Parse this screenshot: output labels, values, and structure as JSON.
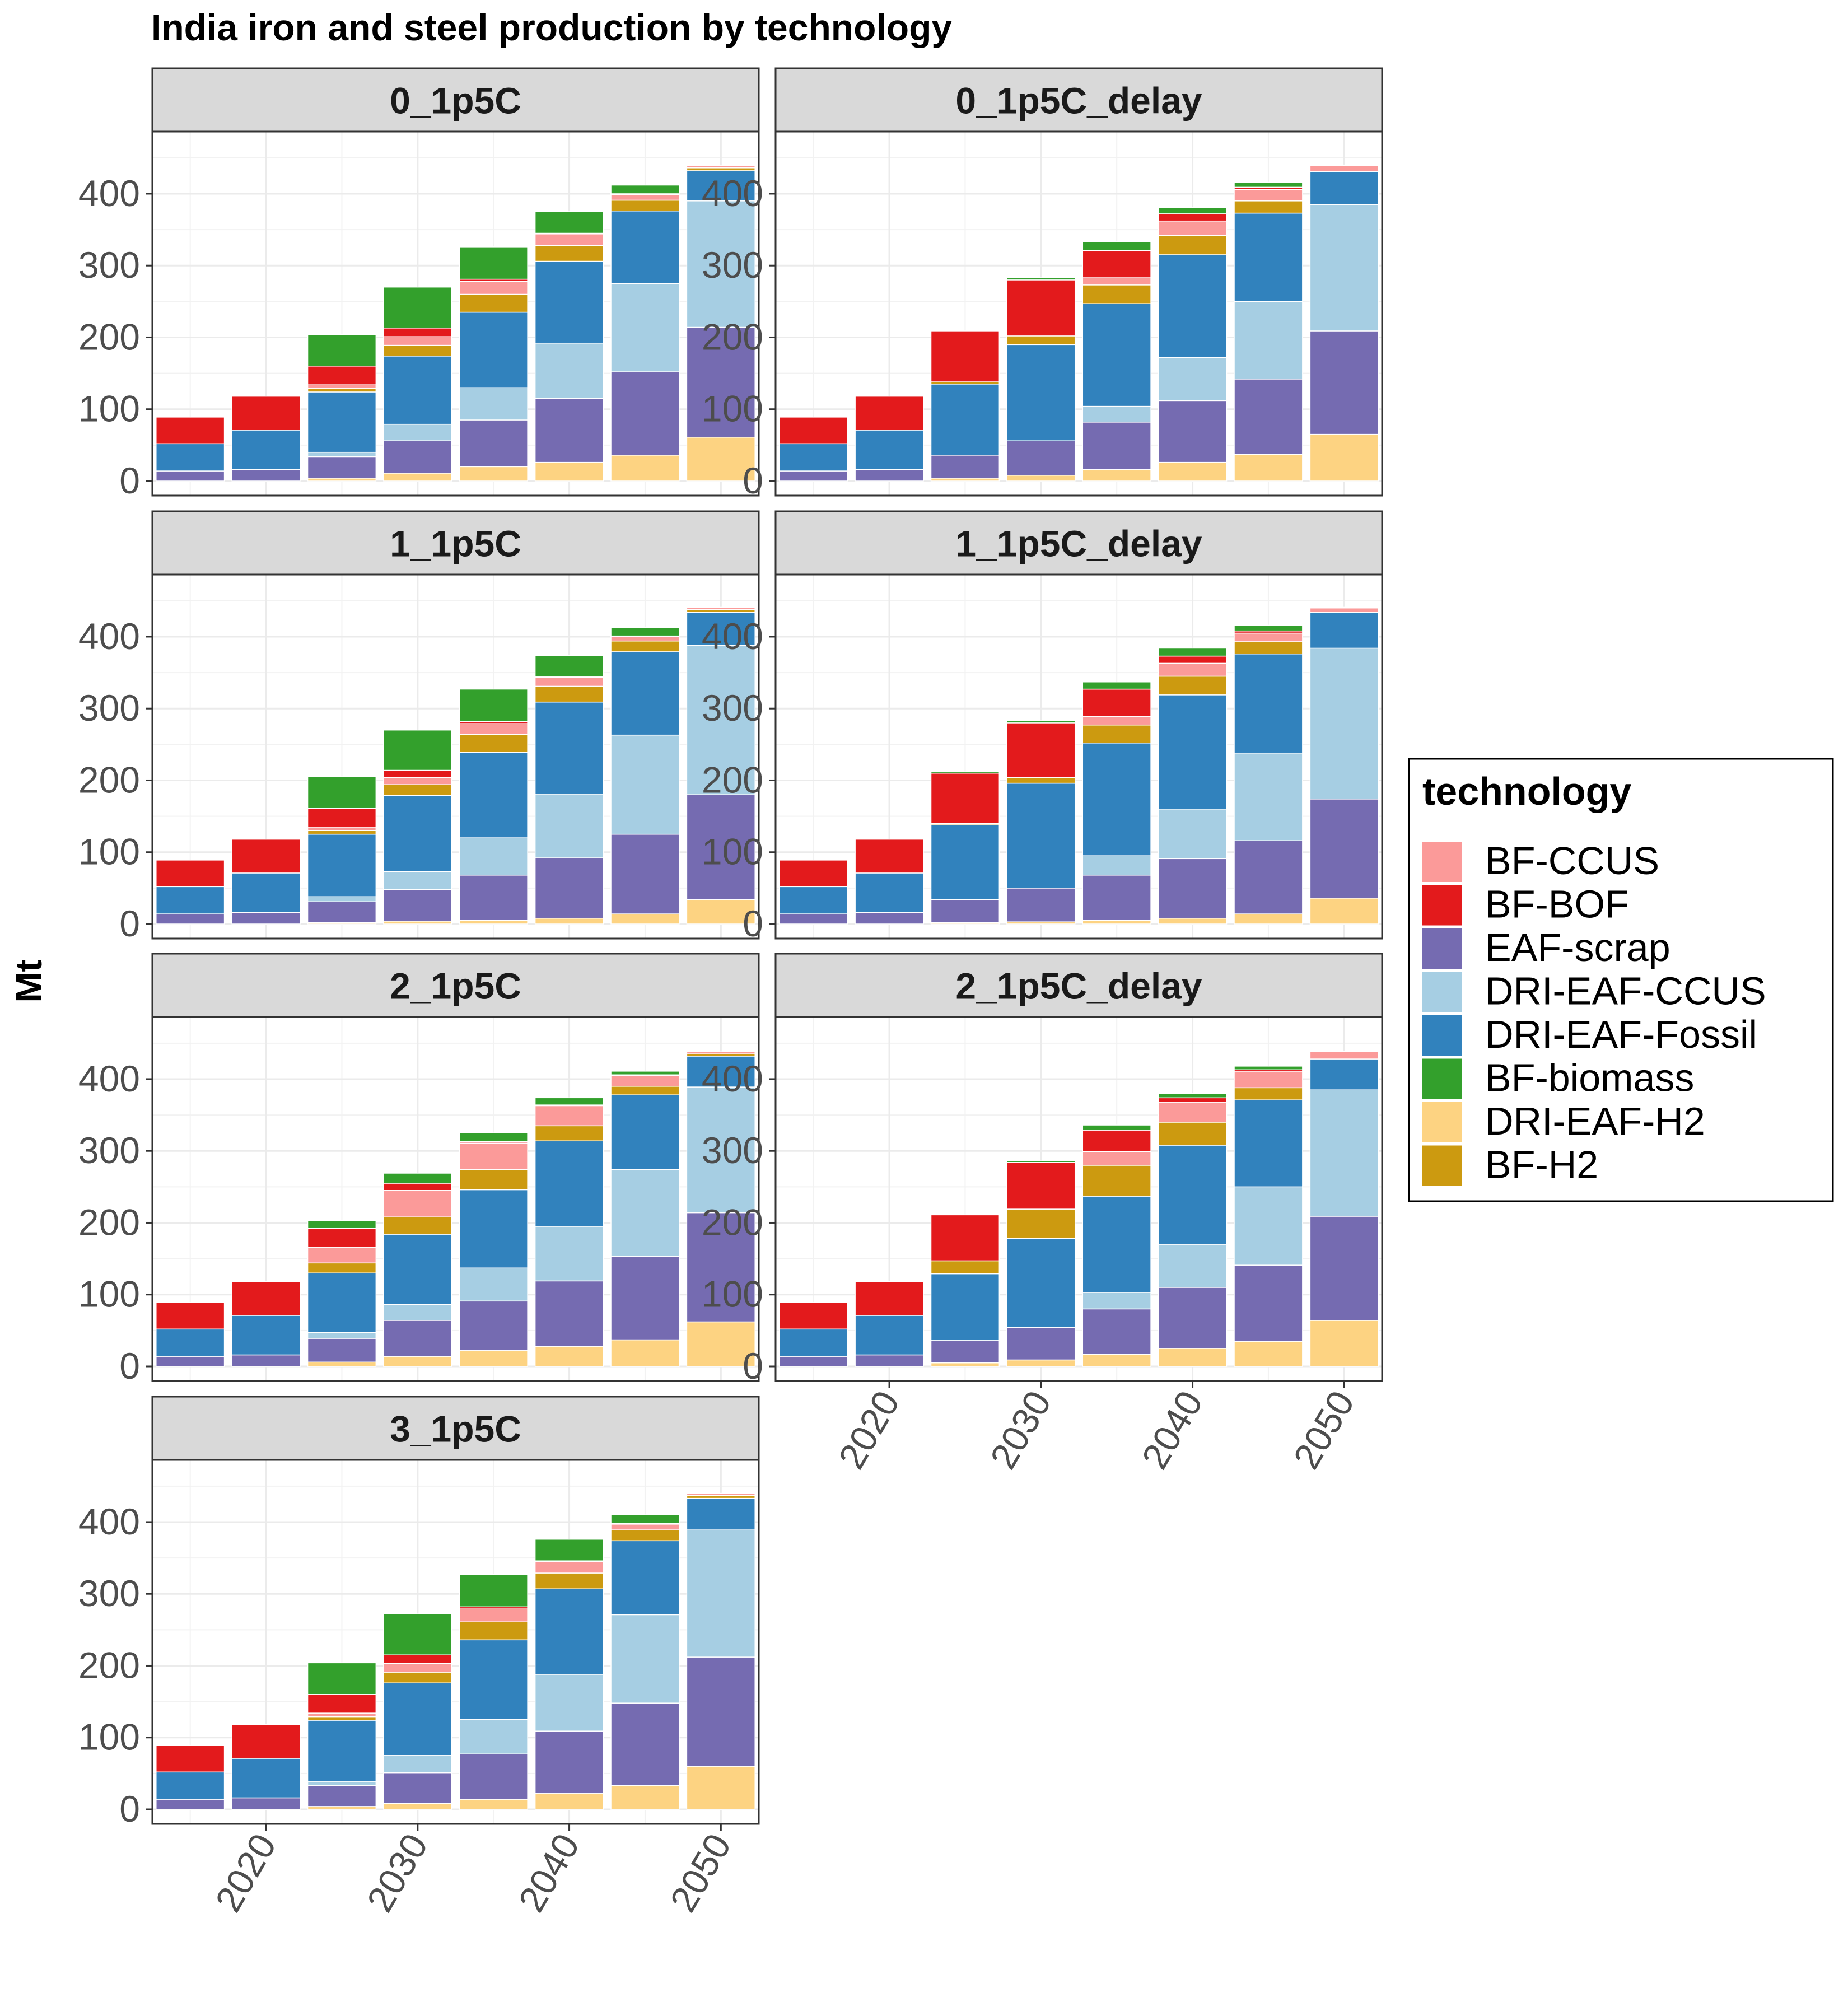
{
  "chart_data": {
    "type": "bar",
    "stacked": true,
    "title": "India iron and steel production by technology",
    "ylabel": "Mt",
    "xlabel": "",
    "x_tick_labels": [
      "2020",
      "2030",
      "2040",
      "2050"
    ],
    "y_tick_labels": [
      "0",
      "100",
      "200",
      "300",
      "400"
    ],
    "ylim": [
      0,
      460
    ],
    "categories": [
      2015,
      2020,
      2025,
      2030,
      2035,
      2040,
      2045,
      2050
    ],
    "grid": true,
    "legend_position": "right",
    "legend": {
      "title": "technology",
      "entries": [
        {
          "name": "BF-CCUS",
          "color": "#FB9A99"
        },
        {
          "name": "BF-BOF",
          "color": "#E31A1C"
        },
        {
          "name": "EAF-scrap",
          "color": "#756BB1"
        },
        {
          "name": "DRI-EAF-CCUS",
          "color": "#A6CEE3"
        },
        {
          "name": "DRI-EAF-Fossil",
          "color": "#3182BD"
        },
        {
          "name": "BF-biomass",
          "color": "#33A02C"
        },
        {
          "name": "DRI-EAF-H2",
          "color": "#FDD382"
        },
        {
          "name": "BF-H2",
          "color": "#CC9A10"
        }
      ]
    },
    "stack_order_bottom_to_top": [
      "DRI-EAF-H2",
      "EAF-scrap",
      "DRI-EAF-CCUS",
      "DRI-EAF-Fossil",
      "BF-H2",
      "BF-CCUS",
      "BF-BOF",
      "BF-biomass"
    ],
    "panels": [
      {
        "name": "0_1p5C",
        "series": [
          {
            "name": "DRI-EAF-H2",
            "values": [
              0,
              0,
              4,
              11,
              20,
              26,
              36,
              61
            ]
          },
          {
            "name": "EAF-scrap",
            "values": [
              14,
              16,
              30,
              45,
              65,
              89,
              116,
              153
            ]
          },
          {
            "name": "DRI-EAF-CCUS",
            "values": [
              0,
              0,
              6,
              23,
              45,
              77,
              123,
              176
            ]
          },
          {
            "name": "DRI-EAF-Fossil",
            "values": [
              38,
              55,
              84,
              95,
              105,
              114,
              101,
              42
            ]
          },
          {
            "name": "BF-H2",
            "values": [
              0,
              0,
              5,
              15,
              25,
              22,
              15,
              4
            ]
          },
          {
            "name": "BF-CCUS",
            "values": [
              0,
              0,
              5,
              12,
              18,
              16,
              8,
              3
            ]
          },
          {
            "name": "BF-BOF",
            "values": [
              37,
              47,
              26,
              12,
              3,
              1,
              1,
              0
            ]
          },
          {
            "name": "BF-biomass",
            "values": [
              0,
              0,
              44,
              57,
              45,
              30,
              12,
              0
            ]
          }
        ]
      },
      {
        "name": "0_1p5C_delay",
        "series": [
          {
            "name": "DRI-EAF-H2",
            "values": [
              0,
              0,
              4,
              8,
              16,
              26,
              37,
              65
            ]
          },
          {
            "name": "EAF-scrap",
            "values": [
              14,
              16,
              32,
              48,
              66,
              86,
              105,
              144
            ]
          },
          {
            "name": "DRI-EAF-CCUS",
            "values": [
              0,
              0,
              0,
              0,
              22,
              60,
              108,
              176
            ]
          },
          {
            "name": "DRI-EAF-Fossil",
            "values": [
              38,
              55,
              99,
              134,
              143,
              143,
              123,
              46
            ]
          },
          {
            "name": "BF-H2",
            "values": [
              0,
              0,
              3,
              12,
              26,
              27,
              17,
              0
            ]
          },
          {
            "name": "BF-CCUS",
            "values": [
              0,
              0,
              0,
              0,
              10,
              20,
              16,
              8
            ]
          },
          {
            "name": "BF-BOF",
            "values": [
              37,
              47,
              71,
              78,
              38,
              10,
              3,
              1
            ]
          },
          {
            "name": "BF-biomass",
            "values": [
              0,
              0,
              0,
              3,
              12,
              9,
              7,
              0
            ]
          }
        ]
      },
      {
        "name": "1_1p5C",
        "series": [
          {
            "name": "DRI-EAF-H2",
            "values": [
              0,
              0,
              2,
              4,
              5,
              8,
              14,
              34
            ]
          },
          {
            "name": "EAF-scrap",
            "values": [
              14,
              16,
              29,
              44,
              63,
              84,
              111,
              146
            ]
          },
          {
            "name": "DRI-EAF-CCUS",
            "values": [
              0,
              0,
              7,
              25,
              52,
              89,
              138,
              208
            ]
          },
          {
            "name": "DRI-EAF-Fossil",
            "values": [
              38,
              55,
              87,
              106,
              119,
              128,
              116,
              46
            ]
          },
          {
            "name": "BF-H2",
            "values": [
              0,
              0,
              5,
              15,
              25,
              22,
              15,
              4
            ]
          },
          {
            "name": "BF-CCUS",
            "values": [
              0,
              0,
              5,
              10,
              15,
              12,
              6,
              3
            ]
          },
          {
            "name": "BF-BOF",
            "values": [
              37,
              47,
              26,
              10,
              3,
              1,
              1,
              0
            ]
          },
          {
            "name": "BF-biomass",
            "values": [
              0,
              0,
              44,
              56,
              45,
              30,
              12,
              0
            ]
          }
        ]
      },
      {
        "name": "1_1p5C_delay",
        "series": [
          {
            "name": "DRI-EAF-H2",
            "values": [
              0,
              0,
              2,
              3,
              5,
              8,
              14,
              36
            ]
          },
          {
            "name": "EAF-scrap",
            "values": [
              14,
              16,
              32,
              47,
              63,
              83,
              102,
              138
            ]
          },
          {
            "name": "DRI-EAF-CCUS",
            "values": [
              0,
              0,
              0,
              0,
              27,
              69,
              122,
              210
            ]
          },
          {
            "name": "DRI-EAF-Fossil",
            "values": [
              38,
              55,
              104,
              146,
              157,
              159,
              138,
              50
            ]
          },
          {
            "name": "BF-H2",
            "values": [
              0,
              0,
              2,
              8,
              25,
              26,
              17,
              0
            ]
          },
          {
            "name": "BF-CCUS",
            "values": [
              0,
              0,
              0,
              0,
              12,
              18,
              12,
              6
            ]
          },
          {
            "name": "BF-BOF",
            "values": [
              37,
              47,
              70,
              76,
              38,
              10,
              3,
              1
            ]
          },
          {
            "name": "BF-biomass",
            "values": [
              0,
              0,
              2,
              3,
              10,
              11,
              8,
              0
            ]
          }
        ]
      },
      {
        "name": "2_1p5C",
        "series": [
          {
            "name": "DRI-EAF-H2",
            "values": [
              0,
              0,
              6,
              14,
              22,
              28,
              37,
              62
            ]
          },
          {
            "name": "EAF-scrap",
            "values": [
              14,
              16,
              33,
              50,
              69,
              91,
              116,
              152
            ]
          },
          {
            "name": "DRI-EAF-CCUS",
            "values": [
              0,
              0,
              8,
              22,
              46,
              76,
              121,
              175
            ]
          },
          {
            "name": "DRI-EAF-Fossil",
            "values": [
              38,
              55,
              83,
              98,
              109,
              119,
              104,
              43
            ]
          },
          {
            "name": "BF-H2",
            "values": [
              0,
              0,
              14,
              24,
              28,
              21,
              12,
              3
            ]
          },
          {
            "name": "BF-CCUS",
            "values": [
              0,
              0,
              22,
              37,
              37,
              28,
              15,
              3
            ]
          },
          {
            "name": "BF-BOF",
            "values": [
              37,
              47,
              26,
              10,
              2,
              1,
              1,
              0
            ]
          },
          {
            "name": "BF-biomass",
            "values": [
              0,
              0,
              11,
              14,
              12,
              10,
              5,
              0
            ]
          }
        ]
      },
      {
        "name": "2_1p5C_delay",
        "series": [
          {
            "name": "DRI-EAF-H2",
            "values": [
              0,
              0,
              5,
              9,
              17,
              25,
              35,
              64
            ]
          },
          {
            "name": "EAF-scrap",
            "values": [
              14,
              16,
              31,
              45,
              63,
              85,
              106,
              145
            ]
          },
          {
            "name": "DRI-EAF-CCUS",
            "values": [
              0,
              0,
              0,
              0,
              23,
              60,
              109,
              176
            ]
          },
          {
            "name": "DRI-EAF-Fossil",
            "values": [
              38,
              55,
              93,
              124,
              134,
              138,
              121,
              43
            ]
          },
          {
            "name": "BF-H2",
            "values": [
              0,
              0,
              18,
              41,
              43,
              32,
              17,
              0
            ]
          },
          {
            "name": "BF-CCUS",
            "values": [
              0,
              0,
              0,
              0,
              19,
              28,
              23,
              10
            ]
          },
          {
            "name": "BF-BOF",
            "values": [
              37,
              47,
              64,
              65,
              30,
              6,
              2,
              1
            ]
          },
          {
            "name": "BF-biomass",
            "values": [
              0,
              0,
              0,
              2,
              7,
              6,
              5,
              0
            ]
          }
        ]
      },
      {
        "name": "3_1p5C",
        "series": [
          {
            "name": "DRI-EAF-H2",
            "values": [
              0,
              0,
              4,
              8,
              14,
              22,
              33,
              60
            ]
          },
          {
            "name": "EAF-scrap",
            "values": [
              14,
              16,
              29,
              43,
              63,
              87,
              115,
              152
            ]
          },
          {
            "name": "DRI-EAF-CCUS",
            "values": [
              0,
              0,
              6,
              24,
              48,
              79,
              123,
              177
            ]
          },
          {
            "name": "DRI-EAF-Fossil",
            "values": [
              38,
              55,
              85,
              101,
              111,
              119,
              103,
              44
            ]
          },
          {
            "name": "BF-H2",
            "values": [
              0,
              0,
              5,
              15,
              25,
              22,
              15,
              4
            ]
          },
          {
            "name": "BF-CCUS",
            "values": [
              0,
              0,
              5,
              12,
              18,
              16,
              8,
              3
            ]
          },
          {
            "name": "BF-BOF",
            "values": [
              37,
              47,
              26,
              12,
              3,
              1,
              1,
              0
            ]
          },
          {
            "name": "BF-biomass",
            "values": [
              0,
              0,
              44,
              57,
              45,
              30,
              12,
              0
            ]
          }
        ]
      }
    ]
  }
}
